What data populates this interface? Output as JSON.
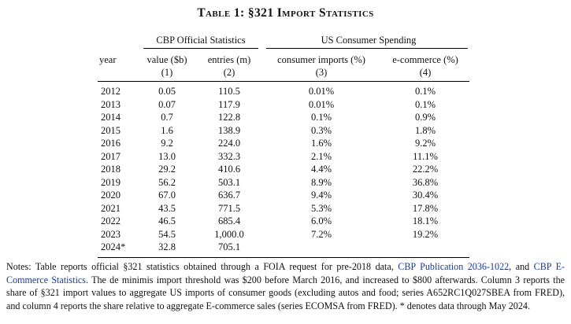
{
  "table": {
    "title": "Table 1: §321 Import Statistics",
    "group_headers": {
      "cbp": "CBP Official Statistics",
      "us": "US Consumer Spending"
    },
    "columns": [
      {
        "label": "year",
        "num": ""
      },
      {
        "label": "value ($b)",
        "num": "(1)"
      },
      {
        "label": "entries (m)",
        "num": "(2)"
      },
      {
        "label": "consumer imports (%)",
        "num": "(3)"
      },
      {
        "label": "e-commerce (%)",
        "num": "(4)"
      }
    ],
    "rows": [
      [
        "2012",
        "0.05",
        "110.5",
        "0.01%",
        "0.1%"
      ],
      [
        "2013",
        "0.07",
        "117.9",
        "0.01%",
        "0.1%"
      ],
      [
        "2014",
        "0.7",
        "122.8",
        "0.1%",
        "0.9%"
      ],
      [
        "2015",
        "1.6",
        "138.9",
        "0.3%",
        "1.8%"
      ],
      [
        "2016",
        "9.2",
        "224.0",
        "1.6%",
        "9.2%"
      ],
      [
        "2017",
        "13.0",
        "332.3",
        "2.1%",
        "11.1%"
      ],
      [
        "2018",
        "29.2",
        "410.6",
        "4.4%",
        "22.2%"
      ],
      [
        "2019",
        "56.2",
        "503.1",
        "8.9%",
        "36.8%"
      ],
      [
        "2020",
        "67.0",
        "636.7",
        "9.4%",
        "30.4%"
      ],
      [
        "2021",
        "43.5",
        "771.5",
        "5.3%",
        "17.8%"
      ],
      [
        "2022",
        "46.5",
        "685.4",
        "6.0%",
        "18.1%"
      ],
      [
        "2023",
        "54.5",
        "1,000.0",
        "7.2%",
        "19.2%"
      ],
      [
        "2024*",
        "32.8",
        "705.1",
        "",
        ""
      ]
    ]
  },
  "notes": {
    "text1": "Notes: Table reports official §321 statistics obtained through a FOIA request for pre-2018 data, ",
    "link1": "CBP Publication 2036-1022",
    "text2": ", and ",
    "link2": "CBP E-Commerce Statistics",
    "text3": ". The de minimis import threshold was $200 before March 2016, and increased to $800 afterwards. Column 3 reports the share of §321 import values to aggregate US imports of consumer goods (excluding autos and food; series A652RC1Q027SBEA from FRED), and column 4 reports the share relative to aggregate E-commerce sales (series ECOMSA from FRED). * denotes data through May 2024."
  }
}
